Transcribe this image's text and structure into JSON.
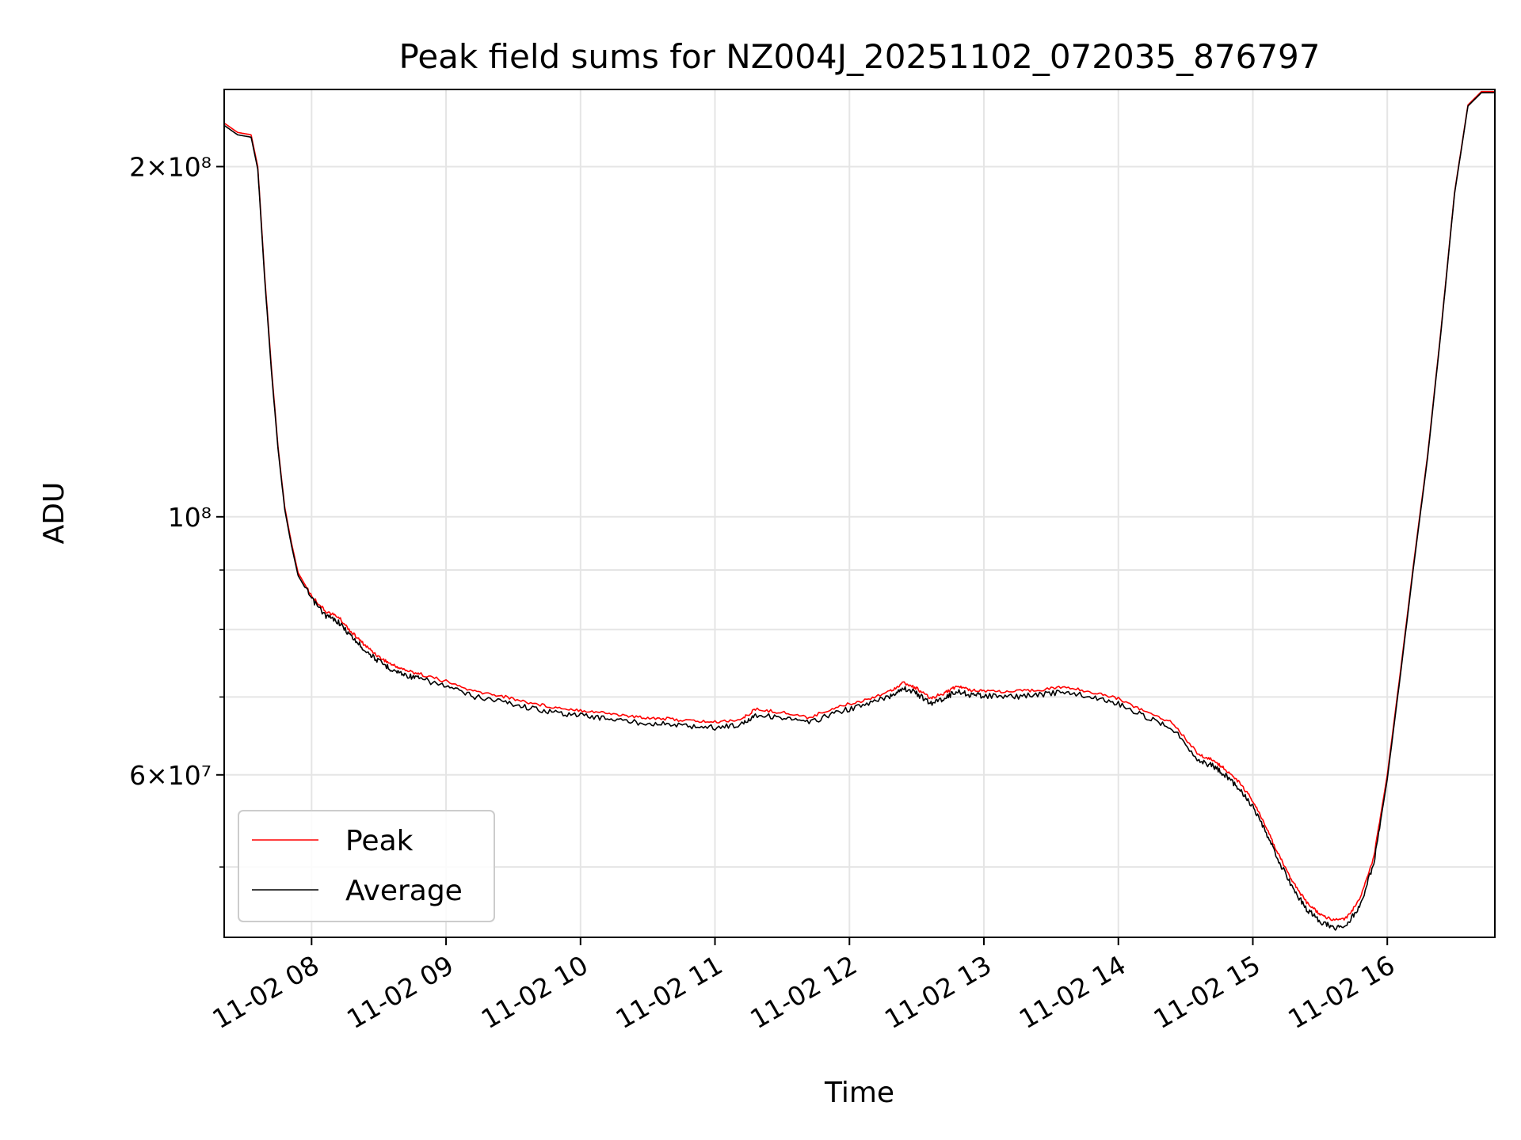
{
  "chart_data": {
    "type": "line",
    "title": "Peak field sums for NZ004J_20251102_072035_876797",
    "xlabel": "Time",
    "ylabel": "ADU",
    "yscale": "log",
    "xlim_hours": [
      7.35,
      16.8
    ],
    "ylim": [
      43500000,
      233000000
    ],
    "x_ticks": [
      {
        "hour": 8,
        "label": "11-02 08"
      },
      {
        "hour": 9,
        "label": "11-02 09"
      },
      {
        "hour": 10,
        "label": "11-02 10"
      },
      {
        "hour": 11,
        "label": "11-02 11"
      },
      {
        "hour": 12,
        "label": "11-02 12"
      },
      {
        "hour": 13,
        "label": "11-02 13"
      },
      {
        "hour": 14,
        "label": "11-02 14"
      },
      {
        "hour": 15,
        "label": "11-02 15"
      },
      {
        "hour": 16,
        "label": "11-02 16"
      }
    ],
    "y_major_ticks": [
      {
        "value": 60000000,
        "label": "6×10⁷"
      },
      {
        "value": 100000000,
        "label": "10⁸"
      },
      {
        "value": 200000000,
        "label": "2×10⁸"
      }
    ],
    "y_minor_ticks": [
      50000000,
      70000000,
      80000000,
      90000000
    ],
    "grid": true,
    "legend": {
      "placement": "lower-left",
      "entries": [
        {
          "name": "Peak",
          "color": "#ff0000"
        },
        {
          "name": "Average",
          "color": "#000000"
        }
      ]
    },
    "series": [
      {
        "name": "Peak",
        "color": "#ff0000",
        "x_hours": [
          7.35,
          7.45,
          7.55,
          7.6,
          7.65,
          7.7,
          7.75,
          7.8,
          7.85,
          7.9,
          8.0,
          8.1,
          8.2,
          8.3,
          8.4,
          8.5,
          8.6,
          8.7,
          8.8,
          9.0,
          9.2,
          9.4,
          9.6,
          9.8,
          10.0,
          10.2,
          10.4,
          10.6,
          10.8,
          11.0,
          11.2,
          11.3,
          11.5,
          11.7,
          11.9,
          12.1,
          12.3,
          12.4,
          12.5,
          12.6,
          12.7,
          12.8,
          12.9,
          13.0,
          13.2,
          13.4,
          13.6,
          13.8,
          14.0,
          14.2,
          14.4,
          14.6,
          14.7,
          14.8,
          14.9,
          15.0,
          15.1,
          15.2,
          15.3,
          15.4,
          15.5,
          15.6,
          15.7,
          15.8,
          15.9,
          16.0,
          16.1,
          16.2,
          16.3,
          16.4,
          16.5,
          16.6,
          16.7,
          16.8
        ],
        "values": [
          218000000,
          214000000,
          213000000,
          200000000,
          162000000,
          135000000,
          115000000,
          102000000,
          95000000,
          89500000,
          85500000,
          83000000,
          82000000,
          79500000,
          77500000,
          75800000,
          74600000,
          73800000,
          73300000,
          72200000,
          70800000,
          70200000,
          69300000,
          68600000,
          68200000,
          67800000,
          67300000,
          67100000,
          66800000,
          66600000,
          67000000,
          68300000,
          67900000,
          67200000,
          68600000,
          69500000,
          70800000,
          72000000,
          71200000,
          69800000,
          70500000,
          71500000,
          71000000,
          70900000,
          70700000,
          71000000,
          71400000,
          70700000,
          69800000,
          68000000,
          66600000,
          62400000,
          61800000,
          60600000,
          59100000,
          57000000,
          54000000,
          51000000,
          48500000,
          46600000,
          45500000,
          45000000,
          45200000,
          47000000,
          51000000,
          60000000,
          74000000,
          92000000,
          113000000,
          145000000,
          190000000,
          226000000,
          232000000,
          232000000
        ]
      },
      {
        "name": "Average",
        "color": "#000000",
        "x_hours": [
          7.35,
          7.45,
          7.55,
          7.6,
          7.65,
          7.7,
          7.75,
          7.8,
          7.85,
          7.9,
          8.0,
          8.1,
          8.2,
          8.3,
          8.4,
          8.5,
          8.6,
          8.7,
          8.8,
          9.0,
          9.2,
          9.4,
          9.6,
          9.8,
          10.0,
          10.2,
          10.4,
          10.6,
          10.8,
          11.0,
          11.2,
          11.3,
          11.5,
          11.7,
          11.9,
          12.1,
          12.3,
          12.4,
          12.5,
          12.6,
          12.7,
          12.8,
          12.9,
          13.0,
          13.2,
          13.4,
          13.6,
          13.8,
          14.0,
          14.2,
          14.4,
          14.6,
          14.7,
          14.8,
          14.9,
          15.0,
          15.1,
          15.2,
          15.3,
          15.4,
          15.5,
          15.6,
          15.7,
          15.8,
          15.9,
          16.0,
          16.1,
          16.2,
          16.3,
          16.4,
          16.5,
          16.6,
          16.7,
          16.8
        ],
        "values": [
          217000000,
          213000000,
          212000000,
          199000000,
          161000000,
          134000000,
          114500000,
          101500000,
          94500000,
          89000000,
          85000000,
          82300000,
          81200000,
          78800000,
          76800000,
          75100000,
          73900000,
          73100000,
          72600000,
          71500000,
          70100000,
          69500000,
          68600000,
          67900000,
          67500000,
          67100000,
          66600000,
          66400000,
          66100000,
          65900000,
          66300000,
          67600000,
          67200000,
          66500000,
          67900000,
          68800000,
          70100000,
          71300000,
          70500000,
          69100000,
          69800000,
          70800000,
          70300000,
          70200000,
          70000000,
          70300000,
          70700000,
          70000000,
          69100000,
          67300000,
          65900000,
          61700000,
          61100000,
          59900000,
          58400000,
          56300000,
          53400000,
          50400000,
          47900000,
          46000000,
          44900000,
          44300000,
          44600000,
          46400000,
          50400000,
          59500000,
          73500000,
          91500000,
          112500000,
          144500000,
          189500000,
          225500000,
          231500000,
          231500000
        ]
      }
    ]
  }
}
